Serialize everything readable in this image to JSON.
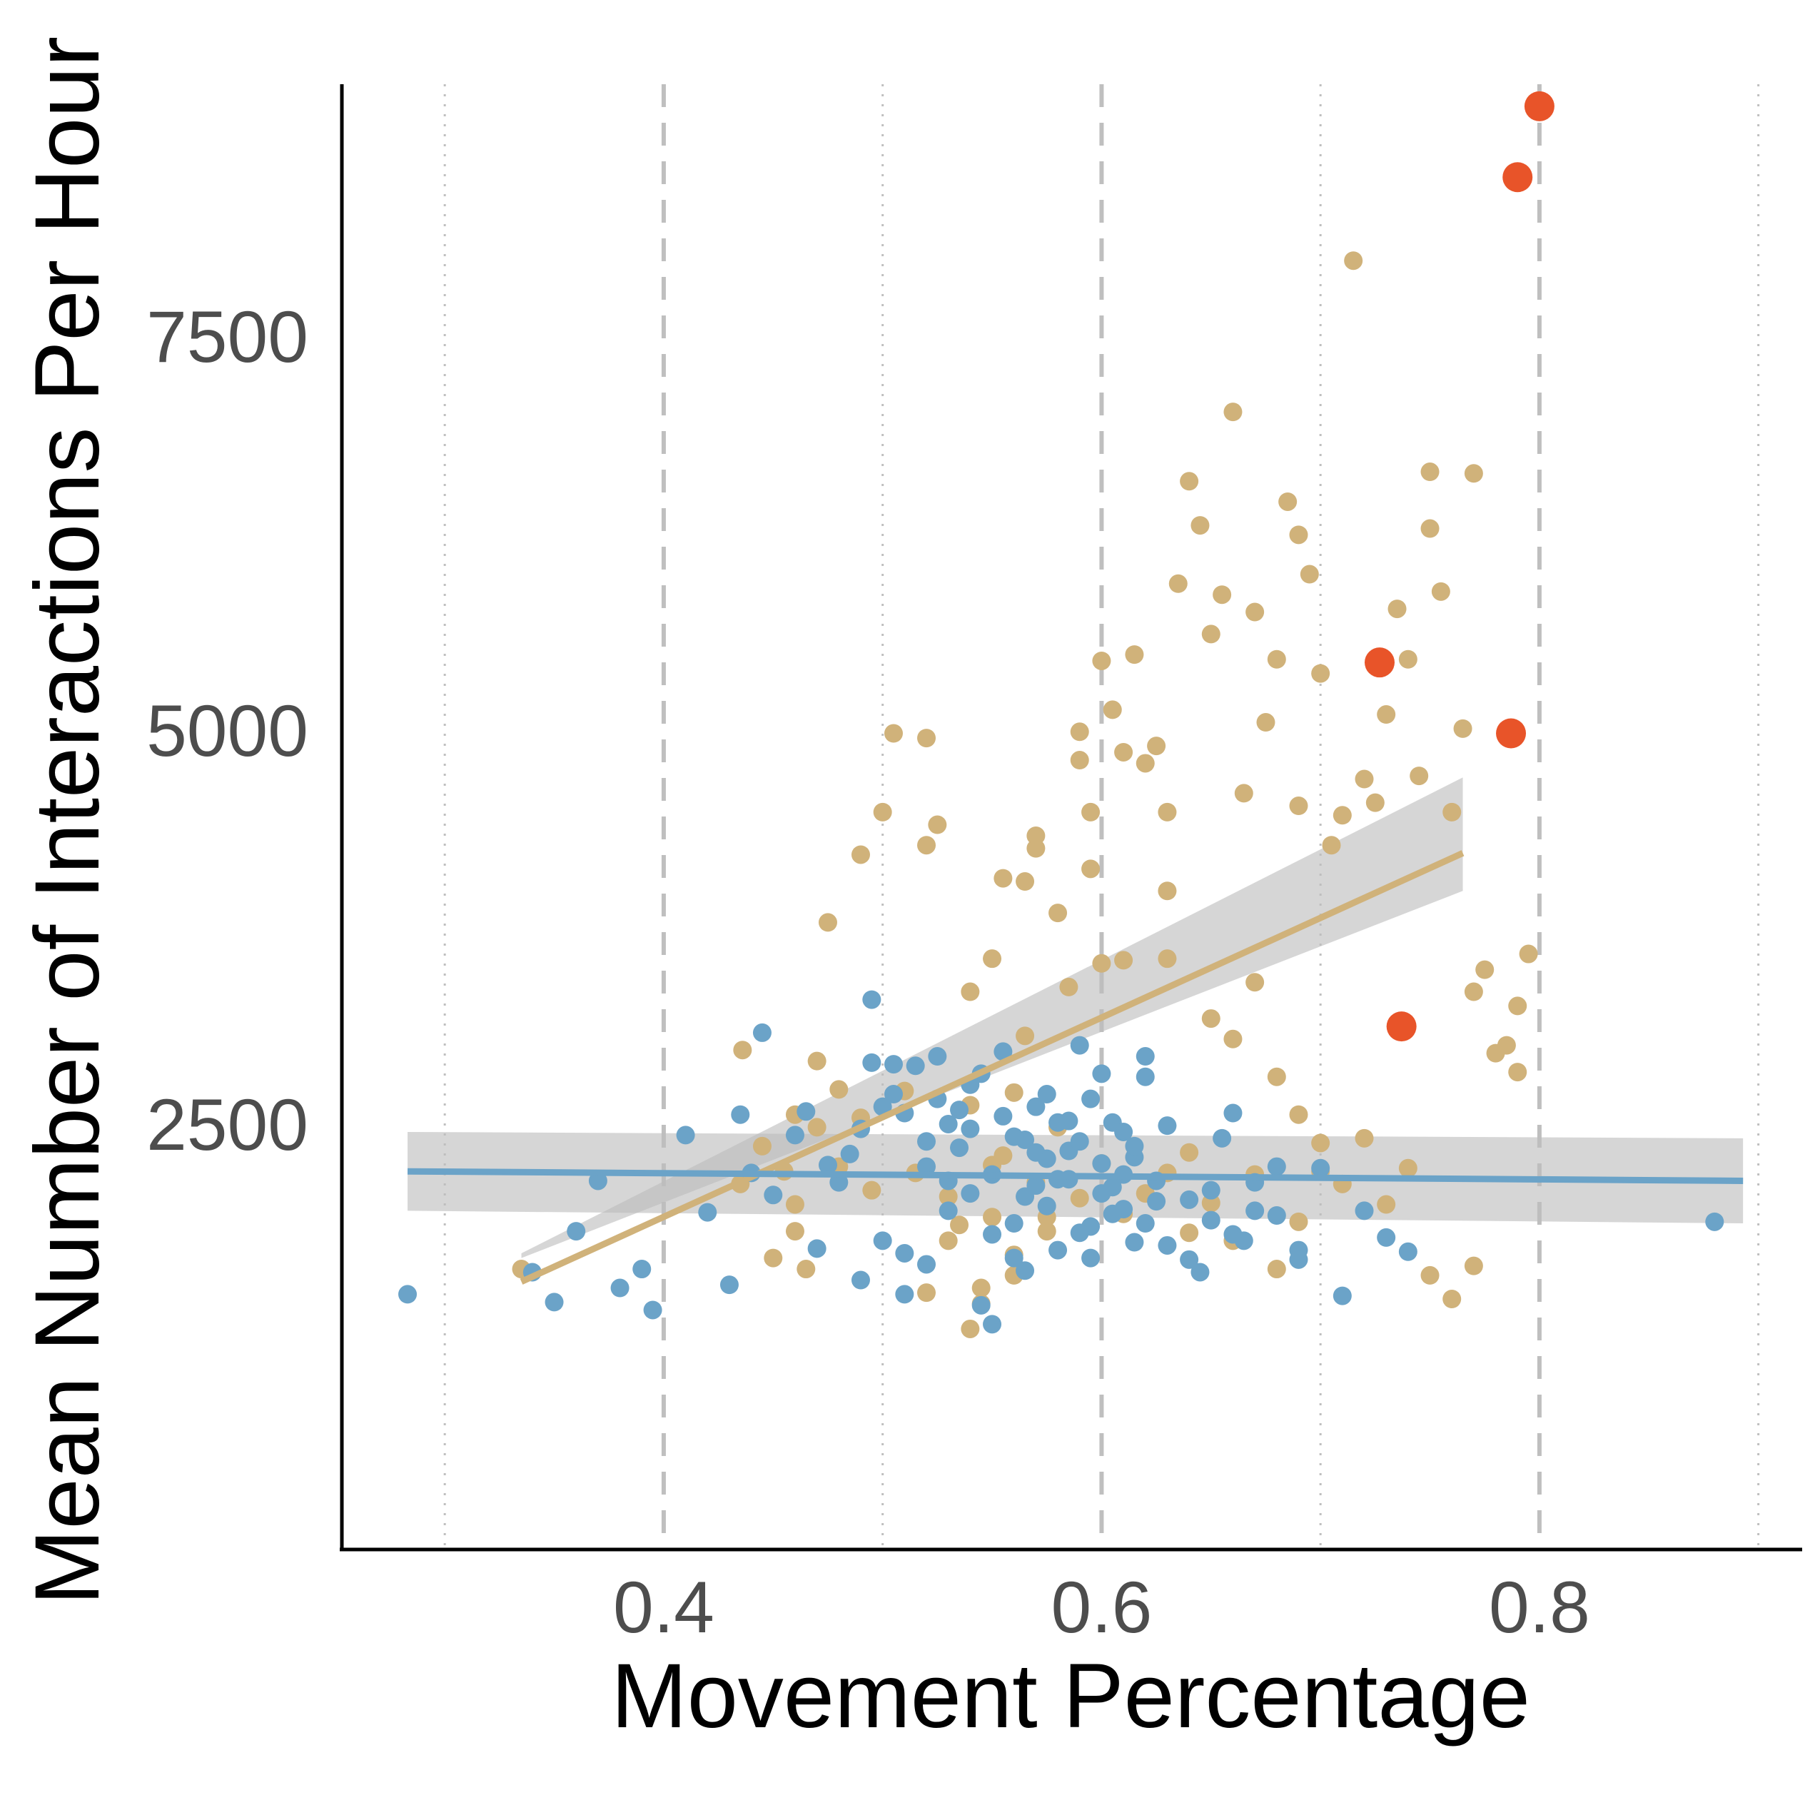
{
  "chart_data": {
    "type": "scatter",
    "title": "",
    "xlabel": "Movement Percentage",
    "ylabel": "Mean Number of Interactions Per Hour",
    "xlim": [
      0.253,
      0.92
    ],
    "ylim": [
      -200,
      9100
    ],
    "x_ticks": [
      0.4,
      0.6,
      0.8
    ],
    "x_tick_labels": [
      "0.4",
      "0.6",
      "0.8"
    ],
    "y_ticks": [
      2500,
      5000,
      7500
    ],
    "y_tick_labels": [
      "2500",
      "5000",
      "7500"
    ],
    "x_major_grid": [
      0.4,
      0.6,
      0.8
    ],
    "x_minor_grid": [
      0.3,
      0.5,
      0.7,
      0.9
    ],
    "grid": "vertical only",
    "legend": "none",
    "colors": {
      "tan": "#d0b27a",
      "blue": "#6ba3c8",
      "red": "#e85429",
      "band": "#bdbdbd",
      "grid": "#bfbfbf"
    },
    "series": [
      {
        "color": "#d0b27a",
        "points": [
          [
            0.335,
            1580
          ],
          [
            0.436,
            2970
          ],
          [
            0.445,
            2360
          ],
          [
            0.435,
            2120
          ],
          [
            0.455,
            2200
          ],
          [
            0.46,
            1820
          ],
          [
            0.465,
            1580
          ],
          [
            0.475,
            3780
          ],
          [
            0.48,
            2230
          ],
          [
            0.49,
            2540
          ],
          [
            0.495,
            2080
          ],
          [
            0.49,
            4210
          ],
          [
            0.5,
            4480
          ],
          [
            0.505,
            4980
          ],
          [
            0.51,
            2710
          ],
          [
            0.515,
            2190
          ],
          [
            0.52,
            4270
          ],
          [
            0.52,
            4950
          ],
          [
            0.525,
            4400
          ],
          [
            0.53,
            2040
          ],
          [
            0.535,
            1860
          ],
          [
            0.54,
            2620
          ],
          [
            0.54,
            3340
          ],
          [
            0.545,
            1460
          ],
          [
            0.55,
            3550
          ],
          [
            0.55,
            2240
          ],
          [
            0.555,
            4060
          ],
          [
            0.56,
            1670
          ],
          [
            0.565,
            4040
          ],
          [
            0.565,
            3060
          ],
          [
            0.57,
            4330
          ],
          [
            0.57,
            4250
          ],
          [
            0.575,
            1910
          ],
          [
            0.58,
            3840
          ],
          [
            0.585,
            3370
          ],
          [
            0.59,
            4990
          ],
          [
            0.59,
            4810
          ],
          [
            0.595,
            4480
          ],
          [
            0.595,
            4120
          ],
          [
            0.6,
            3520
          ],
          [
            0.6,
            5440
          ],
          [
            0.605,
            5130
          ],
          [
            0.61,
            3540
          ],
          [
            0.61,
            4860
          ],
          [
            0.615,
            5480
          ],
          [
            0.62,
            4790
          ],
          [
            0.625,
            4900
          ],
          [
            0.63,
            3980
          ],
          [
            0.63,
            3550
          ],
          [
            0.63,
            4480
          ],
          [
            0.635,
            5930
          ],
          [
            0.64,
            6580
          ],
          [
            0.645,
            6300
          ],
          [
            0.65,
            5610
          ],
          [
            0.655,
            5860
          ],
          [
            0.66,
            7020
          ],
          [
            0.665,
            4600
          ],
          [
            0.67,
            5750
          ],
          [
            0.675,
            5050
          ],
          [
            0.68,
            5450
          ],
          [
            0.685,
            6450
          ],
          [
            0.69,
            4520
          ],
          [
            0.69,
            6240
          ],
          [
            0.695,
            5990
          ],
          [
            0.7,
            5360
          ],
          [
            0.705,
            4270
          ],
          [
            0.71,
            4460
          ],
          [
            0.715,
            7980
          ],
          [
            0.72,
            4690
          ],
          [
            0.725,
            4540
          ],
          [
            0.73,
            5100
          ],
          [
            0.735,
            5770
          ],
          [
            0.74,
            5450
          ],
          [
            0.745,
            4710
          ],
          [
            0.75,
            6640
          ],
          [
            0.75,
            6280
          ],
          [
            0.755,
            5880
          ],
          [
            0.76,
            4480
          ],
          [
            0.765,
            5010
          ],
          [
            0.77,
            6630
          ],
          [
            0.77,
            3340
          ],
          [
            0.775,
            3480
          ],
          [
            0.78,
            2950
          ],
          [
            0.785,
            3000
          ],
          [
            0.79,
            3250
          ],
          [
            0.79,
            2830
          ],
          [
            0.795,
            3580
          ],
          [
            0.65,
            3170
          ],
          [
            0.66,
            3040
          ],
          [
            0.67,
            3400
          ],
          [
            0.68,
            2800
          ],
          [
            0.69,
            2560
          ],
          [
            0.7,
            2380
          ],
          [
            0.71,
            2120
          ],
          [
            0.72,
            2410
          ],
          [
            0.73,
            1990
          ],
          [
            0.74,
            2220
          ],
          [
            0.75,
            1540
          ],
          [
            0.76,
            1390
          ],
          [
            0.77,
            1600
          ],
          [
            0.45,
            1650
          ],
          [
            0.46,
            2560
          ],
          [
            0.47,
            2900
          ],
          [
            0.48,
            2720
          ],
          [
            0.52,
            1430
          ],
          [
            0.53,
            1760
          ],
          [
            0.54,
            1200
          ],
          [
            0.545,
            1360
          ],
          [
            0.55,
            1910
          ],
          [
            0.555,
            2300
          ],
          [
            0.56,
            1540
          ],
          [
            0.56,
            2700
          ],
          [
            0.57,
            2130
          ],
          [
            0.575,
            1820
          ],
          [
            0.58,
            2480
          ],
          [
            0.59,
            2030
          ],
          [
            0.6,
            2250
          ],
          [
            0.61,
            1930
          ],
          [
            0.62,
            2060
          ],
          [
            0.63,
            2190
          ],
          [
            0.64,
            2320
          ],
          [
            0.64,
            1810
          ],
          [
            0.65,
            2000
          ],
          [
            0.66,
            1760
          ],
          [
            0.67,
            2180
          ],
          [
            0.68,
            1580
          ],
          [
            0.69,
            1880
          ],
          [
            0.7,
            2200
          ],
          [
            0.46,
            1990
          ],
          [
            0.47,
            2480
          ]
        ]
      },
      {
        "color": "#6ba3c8",
        "points": [
          [
            0.283,
            1420
          ],
          [
            0.34,
            1560
          ],
          [
            0.35,
            1370
          ],
          [
            0.36,
            1820
          ],
          [
            0.37,
            2140
          ],
          [
            0.38,
            1460
          ],
          [
            0.39,
            1580
          ],
          [
            0.395,
            1320
          ],
          [
            0.41,
            2430
          ],
          [
            0.42,
            1940
          ],
          [
            0.43,
            1480
          ],
          [
            0.435,
            2560
          ],
          [
            0.44,
            2190
          ],
          [
            0.445,
            3080
          ],
          [
            0.45,
            2050
          ],
          [
            0.46,
            2430
          ],
          [
            0.465,
            2580
          ],
          [
            0.47,
            1710
          ],
          [
            0.475,
            2240
          ],
          [
            0.48,
            2130
          ],
          [
            0.485,
            2310
          ],
          [
            0.49,
            1510
          ],
          [
            0.495,
            3290
          ],
          [
            0.5,
            2610
          ],
          [
            0.505,
            2880
          ],
          [
            0.51,
            1680
          ],
          [
            0.52,
            2390
          ],
          [
            0.525,
            2930
          ],
          [
            0.53,
            2140
          ],
          [
            0.535,
            2590
          ],
          [
            0.54,
            2470
          ],
          [
            0.545,
            2820
          ],
          [
            0.55,
            1800
          ],
          [
            0.555,
            2960
          ],
          [
            0.56,
            1650
          ],
          [
            0.565,
            2400
          ],
          [
            0.57,
            2110
          ],
          [
            0.575,
            2690
          ],
          [
            0.58,
            2150
          ],
          [
            0.585,
            2330
          ],
          [
            0.59,
            3000
          ],
          [
            0.595,
            1850
          ],
          [
            0.6,
            2250
          ],
          [
            0.605,
            2510
          ],
          [
            0.61,
            1960
          ],
          [
            0.615,
            2290
          ],
          [
            0.62,
            2800
          ],
          [
            0.625,
            2140
          ],
          [
            0.63,
            2490
          ],
          [
            0.64,
            2020
          ],
          [
            0.645,
            1560
          ],
          [
            0.65,
            1890
          ],
          [
            0.655,
            2410
          ],
          [
            0.66,
            2570
          ],
          [
            0.665,
            1760
          ],
          [
            0.67,
            2130
          ],
          [
            0.68,
            1920
          ],
          [
            0.69,
            1640
          ],
          [
            0.7,
            2220
          ],
          [
            0.71,
            1410
          ],
          [
            0.72,
            1950
          ],
          [
            0.73,
            1780
          ],
          [
            0.74,
            1690
          ],
          [
            0.5,
            1760
          ],
          [
            0.51,
            1420
          ],
          [
            0.52,
            1610
          ],
          [
            0.53,
            1950
          ],
          [
            0.54,
            2060
          ],
          [
            0.545,
            1350
          ],
          [
            0.55,
            1230
          ],
          [
            0.56,
            1870
          ],
          [
            0.565,
            1570
          ],
          [
            0.57,
            2320
          ],
          [
            0.575,
            1980
          ],
          [
            0.58,
            1700
          ],
          [
            0.585,
            2520
          ],
          [
            0.59,
            1810
          ],
          [
            0.595,
            1650
          ],
          [
            0.6,
            2060
          ],
          [
            0.605,
            1930
          ],
          [
            0.61,
            2180
          ],
          [
            0.615,
            1750
          ],
          [
            0.62,
            1870
          ],
          [
            0.625,
            2010
          ],
          [
            0.63,
            1730
          ],
          [
            0.64,
            1640
          ],
          [
            0.65,
            2080
          ],
          [
            0.66,
            1800
          ],
          [
            0.67,
            1950
          ],
          [
            0.68,
            2230
          ],
          [
            0.69,
            1700
          ],
          [
            0.88,
            1880
          ],
          [
            0.49,
            2470
          ],
          [
            0.495,
            2890
          ],
          [
            0.505,
            2690
          ],
          [
            0.51,
            2570
          ],
          [
            0.515,
            2870
          ],
          [
            0.52,
            2230
          ],
          [
            0.525,
            2660
          ],
          [
            0.53,
            2500
          ],
          [
            0.535,
            2350
          ],
          [
            0.54,
            2750
          ],
          [
            0.55,
            2180
          ],
          [
            0.555,
            2550
          ],
          [
            0.56,
            2420
          ],
          [
            0.565,
            2040
          ],
          [
            0.57,
            2610
          ],
          [
            0.575,
            2280
          ],
          [
            0.58,
            2510
          ],
          [
            0.585,
            2150
          ],
          [
            0.59,
            2390
          ],
          [
            0.595,
            2660
          ],
          [
            0.6,
            2820
          ],
          [
            0.605,
            2100
          ],
          [
            0.61,
            2450
          ],
          [
            0.615,
            2360
          ],
          [
            0.62,
            2930
          ]
        ]
      },
      {
        "color": "#e85429",
        "large": true,
        "points": [
          [
            0.8,
            8960
          ],
          [
            0.79,
            8510
          ],
          [
            0.727,
            5430
          ],
          [
            0.787,
            4980
          ],
          [
            0.737,
            3120
          ]
        ]
      }
    ],
    "fits": [
      {
        "color": "#d0b27a",
        "x": [
          0.335,
          0.765
        ],
        "y": [
          1500,
          4220
        ],
        "band": [
          [
            1650,
            1680
          ],
          [
            3980,
            4700
          ]
        ]
      },
      {
        "color": "#6ba3c8",
        "x": [
          0.283,
          0.893
        ],
        "y": [
          2200,
          2140
        ],
        "band": [
          [
            2450,
            1950
          ],
          [
            2410,
            1870
          ]
        ]
      }
    ]
  }
}
